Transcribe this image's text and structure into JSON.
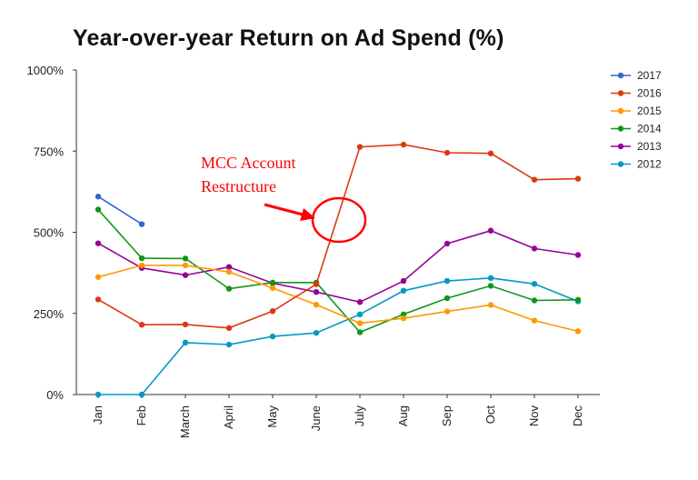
{
  "chart_data": {
    "type": "line",
    "title": "Year-over-year Return on Ad Spend (%)",
    "xlabel": "",
    "ylabel": "",
    "categories": [
      "Jan",
      "Feb",
      "March",
      "April",
      "May",
      "June",
      "July",
      "Aug",
      "Sep",
      "Oct",
      "Nov",
      "Dec"
    ],
    "yticks": [
      "0%",
      "250%",
      "500%",
      "750%",
      "1000%"
    ],
    "ylim": [
      0,
      1000
    ],
    "grid": false,
    "legend_position": "right",
    "series": [
      {
        "name": "2017",
        "color": "#3366cc",
        "values": [
          610,
          525,
          null,
          null,
          null,
          null,
          null,
          null,
          null,
          null,
          null,
          null
        ]
      },
      {
        "name": "2016",
        "color": "#dc3912",
        "values": [
          293,
          215,
          216,
          205,
          257,
          340,
          763,
          770,
          745,
          743,
          662,
          665
        ]
      },
      {
        "name": "2015",
        "color": "#ff9900",
        "values": [
          362,
          398,
          398,
          378,
          328,
          277,
          220,
          235,
          256,
          276,
          228,
          195
        ]
      },
      {
        "name": "2014",
        "color": "#109618",
        "values": [
          570,
          420,
          419,
          326,
          345,
          345,
          192,
          247,
          297,
          335,
          290,
          292
        ]
      },
      {
        "name": "2013",
        "color": "#990099",
        "values": [
          466,
          390,
          368,
          393,
          343,
          316,
          285,
          350,
          465,
          505,
          450,
          430
        ]
      },
      {
        "name": "2012",
        "color": "#0099c6",
        "values": [
          0,
          0,
          160,
          154,
          179,
          190,
          247,
          320,
          350,
          359,
          341,
          287
        ]
      }
    ],
    "annotations": [
      {
        "text_lines": [
          "MCC Account",
          "Restructure"
        ],
        "color": "#ff0000",
        "marker": "circle-with-arrow",
        "category": "June"
      }
    ]
  }
}
